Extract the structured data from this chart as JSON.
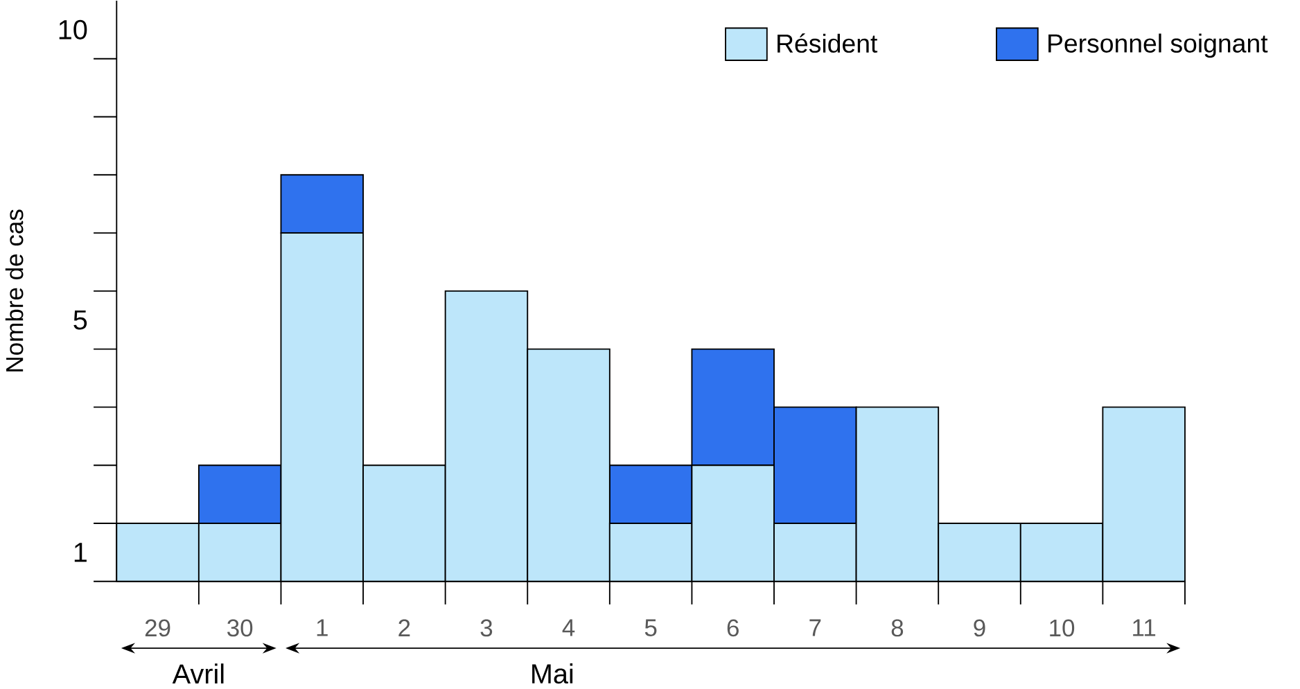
{
  "chart_data": {
    "type": "bar",
    "stacked": true,
    "ylabel": "Nombre de cas",
    "categories": [
      "29",
      "30",
      "1",
      "2",
      "3",
      "4",
      "5",
      "6",
      "7",
      "8",
      "9",
      "10",
      "11"
    ],
    "series": [
      {
        "name": "Résident",
        "color": "#bde6fa",
        "values": [
          1,
          1,
          6,
          2,
          5,
          4,
          1,
          2,
          1,
          3,
          1,
          1,
          3
        ]
      },
      {
        "name": "Personnel soignant",
        "color": "#2f72ee",
        "values": [
          0,
          1,
          1,
          0,
          0,
          0,
          1,
          2,
          2,
          0,
          0,
          0,
          0
        ]
      }
    ],
    "ylim": [
      0,
      10
    ],
    "yticks": [
      {
        "value": 0.5,
        "label": "1"
      },
      {
        "value": 4.5,
        "label": "5"
      },
      {
        "value": 9.5,
        "label": "10"
      }
    ],
    "legend": "top right",
    "annotations": [
      "Avril",
      "Mai"
    ]
  }
}
